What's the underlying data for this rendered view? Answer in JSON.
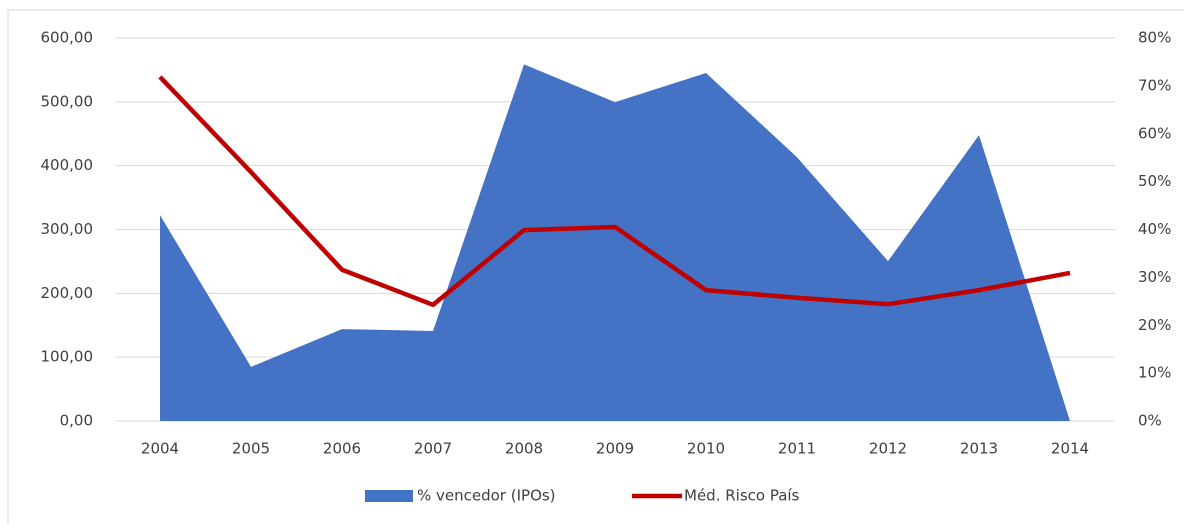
{
  "chart_data": {
    "type": "area-line",
    "categories": [
      "2004",
      "2005",
      "2006",
      "2007",
      "2008",
      "2009",
      "2010",
      "2011",
      "2012",
      "2013",
      "2014"
    ],
    "series": [
      {
        "name": "% vencedor (IPOs)",
        "type": "area",
        "axis": "y2",
        "color": "#4472c4",
        "values": [
          43,
          11.3,
          19.2,
          18.8,
          74.5,
          66.6,
          72.7,
          55.1,
          33.4,
          59.7,
          0
        ]
      },
      {
        "name": "Méd. Risco País",
        "type": "line",
        "color": "#c00000",
        "values": [
          539,
          390,
          237,
          182,
          299,
          304,
          205,
          193,
          183,
          205,
          232
        ]
      }
    ],
    "ylim": [
      0,
      600
    ],
    "yticks": [
      {
        "value": 0,
        "label": "0,00"
      },
      {
        "value": 100,
        "label": "100,00"
      },
      {
        "value": 200,
        "label": "200,00"
      },
      {
        "value": 300,
        "label": "300,00"
      },
      {
        "value": 400,
        "label": "400,00"
      },
      {
        "value": 500,
        "label": "500,00"
      },
      {
        "value": 600,
        "label": "600,00"
      }
    ],
    "y2lim": [
      0,
      80
    ],
    "y2ticks": [
      {
        "value": 0,
        "label": "0%"
      },
      {
        "value": 10,
        "label": "10%"
      },
      {
        "value": 20,
        "label": "20%"
      },
      {
        "value": 30,
        "label": "30%"
      },
      {
        "value": 40,
        "label": "40%"
      },
      {
        "value": 50,
        "label": "50%"
      },
      {
        "value": 60,
        "label": "60%"
      },
      {
        "value": 70,
        "label": "70%"
      },
      {
        "value": 80,
        "label": "80%"
      }
    ],
    "grid": true,
    "legend": "bottom"
  }
}
